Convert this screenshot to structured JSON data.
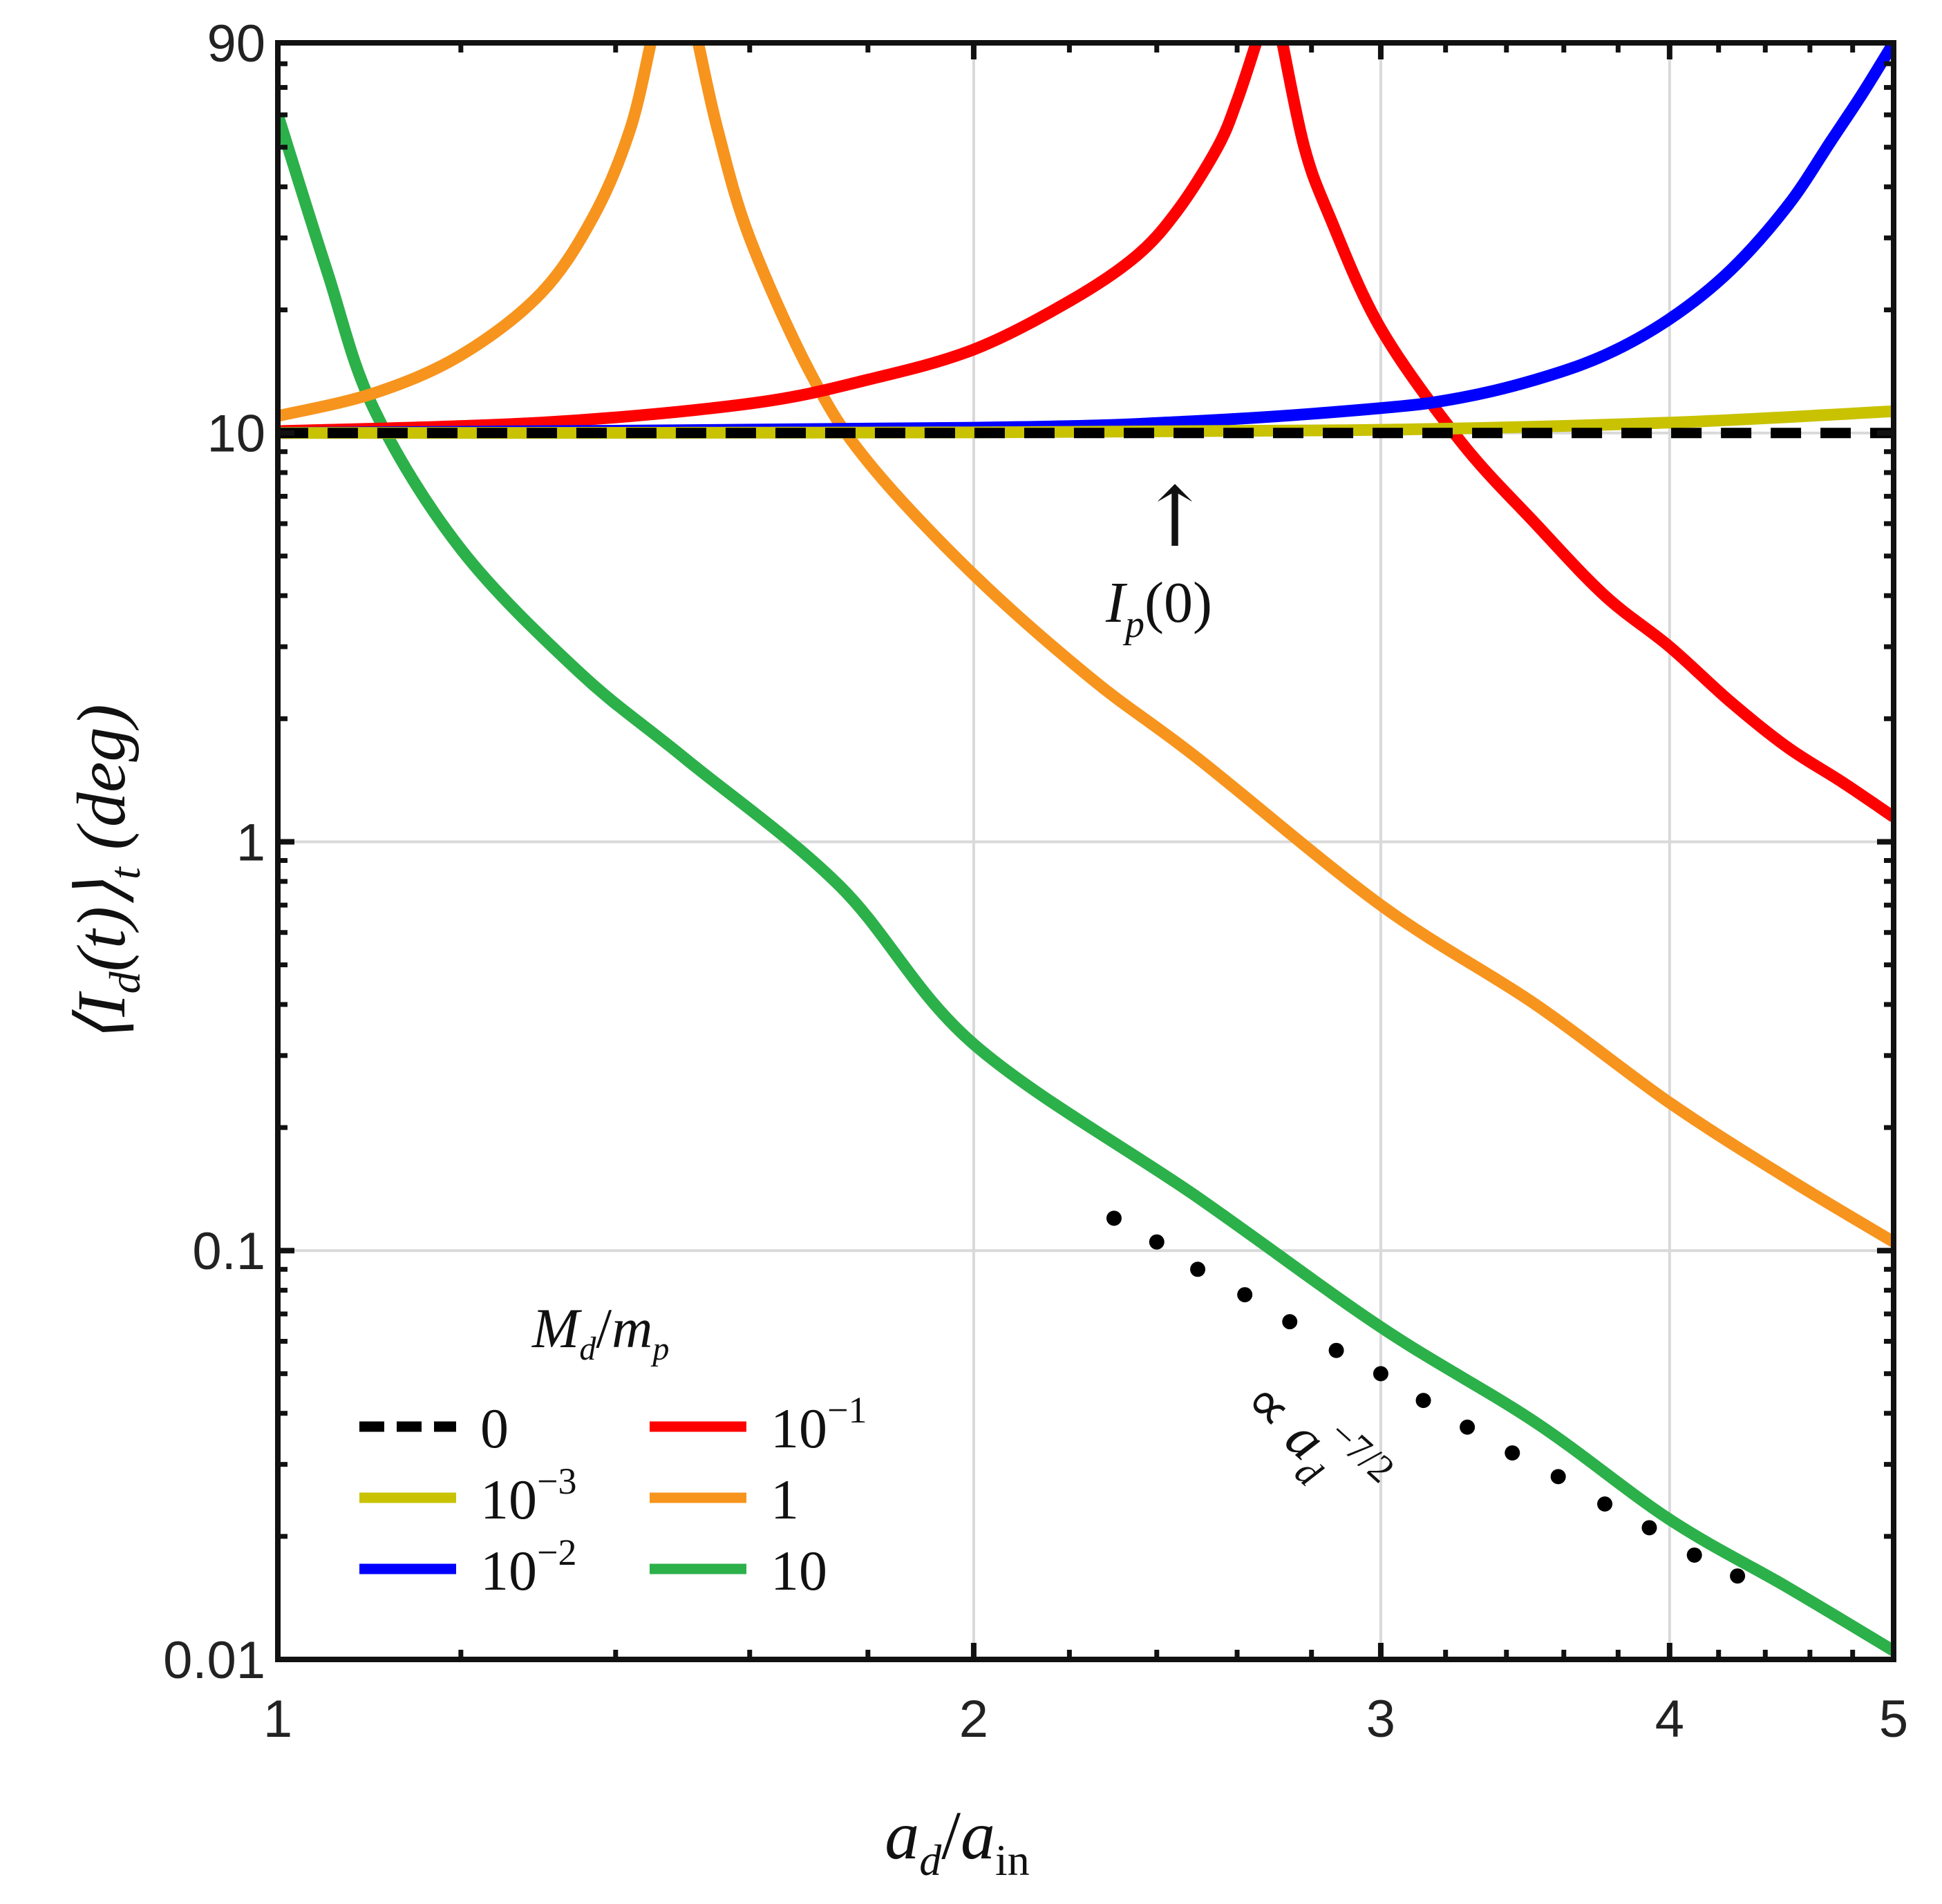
{
  "chart_data": {
    "type": "line",
    "xscale": "log",
    "yscale": "log",
    "xlim": [
      1,
      5
    ],
    "ylim": [
      0.01,
      90
    ],
    "xticks": [
      1,
      2,
      3,
      4,
      5
    ],
    "xtick_labels": [
      "1",
      "2",
      "3",
      "4",
      "5"
    ],
    "yticks": [
      0.01,
      0.1,
      1,
      10,
      90
    ],
    "ytick_labels": [
      "0.01",
      "0.1",
      "1",
      "10",
      "90"
    ],
    "xlabel": "a_d / a_in",
    "xlabel_parts": {
      "base": "a",
      "sub": "d",
      "slash": "/",
      "base2": "a",
      "sub2": "in"
    },
    "ylabel": "⟨I_d(t)⟩_t (deg)",
    "ylabel_parts": {
      "open": "⟨I",
      "sub": "d",
      "mid": "(t)⟩",
      "sub2": "t",
      "unit": " (deg)"
    },
    "grid": true,
    "legend": {
      "title": "M_d / m_p",
      "title_parts": {
        "m": "M",
        "sub": "d",
        "slash": "/",
        "m2": "m",
        "sub2": "p"
      },
      "placement": "bottom-left",
      "entries": [
        {
          "label": "0",
          "base": "0",
          "exp": "",
          "color": "#000000",
          "dashed": true
        },
        {
          "label": "10^-3",
          "base": "10",
          "exp": "−3",
          "color": "#c8c200",
          "dashed": false
        },
        {
          "label": "10^-2",
          "base": "10",
          "exp": "−2",
          "color": "#0000ff",
          "dashed": false
        },
        {
          "label": "10^-1",
          "base": "10",
          "exp": "−1",
          "color": "#ff0000",
          "dashed": false
        },
        {
          "label": "1",
          "base": "1",
          "exp": "",
          "color": "#f7941d",
          "dashed": false
        },
        {
          "label": "10",
          "base": "10",
          "exp": "",
          "color": "#2cb04a",
          "dashed": false
        }
      ]
    },
    "series": [
      {
        "name": "0",
        "color": "#000000",
        "dashed": true,
        "x": [
          1,
          5
        ],
        "y": [
          10,
          10
        ]
      },
      {
        "name": "10^-3",
        "color": "#c8c200",
        "dashed": false,
        "x": [
          1,
          2,
          3,
          4,
          5
        ],
        "y": [
          10.0,
          10.03,
          10.18,
          10.6,
          11.3
        ]
      },
      {
        "name": "10^-2",
        "color": "#0000ff",
        "dashed": false,
        "x": [
          1,
          2,
          2.5,
          3,
          3.25,
          3.5,
          3.75,
          4,
          4.25,
          4.5,
          4.7,
          4.85,
          5
        ],
        "y": [
          10.0,
          10.3,
          10.7,
          11.5,
          12.2,
          13.5,
          15.5,
          19,
          25,
          36,
          52,
          68,
          90
        ]
      },
      {
        "name": "10^-1 (branch 1)",
        "color": "#ff0000",
        "dashed": false,
        "x": [
          1,
          1.3,
          1.6,
          1.8,
          2,
          2.2,
          2.35,
          2.45,
          2.55,
          2.6,
          2.65
        ],
        "y": [
          10.1,
          10.6,
          11.8,
          13.5,
          16,
          21,
          27,
          35,
          50,
          65,
          90
        ]
      },
      {
        "name": "10^-1 (branch 2)",
        "color": "#ff0000",
        "dashed": false,
        "x": [
          2.72,
          2.78,
          2.85,
          3,
          3.25,
          3.5,
          3.75,
          4,
          4.25,
          4.5,
          4.75,
          5
        ],
        "y": [
          90,
          50,
          34,
          18,
          9.5,
          6,
          4,
          3,
          2.2,
          1.7,
          1.4,
          1.15
        ]
      },
      {
        "name": "1 (branch 1)",
        "color": "#f7941d",
        "dashed": false,
        "x": [
          1,
          1.1,
          1.2,
          1.3,
          1.37,
          1.42,
          1.45
        ],
        "y": [
          11,
          12.5,
          15.5,
          22,
          34,
          55,
          90
        ]
      },
      {
        "name": "1 (branch 2)",
        "color": "#f7941d",
        "dashed": false,
        "x": [
          1.52,
          1.55,
          1.6,
          1.7,
          1.8,
          2,
          2.25,
          2.5,
          3,
          3.5,
          4,
          4.5,
          5
        ],
        "y": [
          90,
          55,
          30,
          14,
          8.5,
          4.5,
          2.5,
          1.6,
          0.7,
          0.4,
          0.23,
          0.15,
          0.105
        ]
      },
      {
        "name": "10",
        "color": "#2cb04a",
        "dashed": false,
        "x": [
          1,
          1.05,
          1.1,
          1.2,
          1.35,
          1.5,
          1.75,
          2,
          2.5,
          3,
          3.5,
          4,
          4.5,
          5
        ],
        "y": [
          60,
          25,
          11.5,
          5.2,
          2.6,
          1.6,
          0.78,
          0.32,
          0.135,
          0.065,
          0.038,
          0.022,
          0.015,
          0.0105
        ]
      }
    ],
    "reference_dots": {
      "label": "∝ a_d^(−7/2)",
      "label_parts": {
        "prop": "∝ ",
        "base": "a",
        "sub": "d",
        "exp": "−7/2"
      },
      "color": "#000000",
      "x": [
        2.3,
        2.4,
        2.5,
        2.62,
        2.74,
        2.87,
        3.0,
        3.13,
        3.27,
        3.42,
        3.58,
        3.75,
        3.92,
        4.1,
        4.28
      ],
      "y": [
        0.12,
        0.105,
        0.09,
        0.078,
        0.067,
        0.057,
        0.05,
        0.043,
        0.037,
        0.032,
        0.028,
        0.024,
        0.021,
        0.018,
        0.016
      ]
    },
    "annotation": {
      "text": "I_p(0)",
      "parts": {
        "base": "I",
        "sub": "p",
        "arg": "(0)"
      },
      "arrow": "↑",
      "x": 2.45,
      "y": 10
    }
  }
}
